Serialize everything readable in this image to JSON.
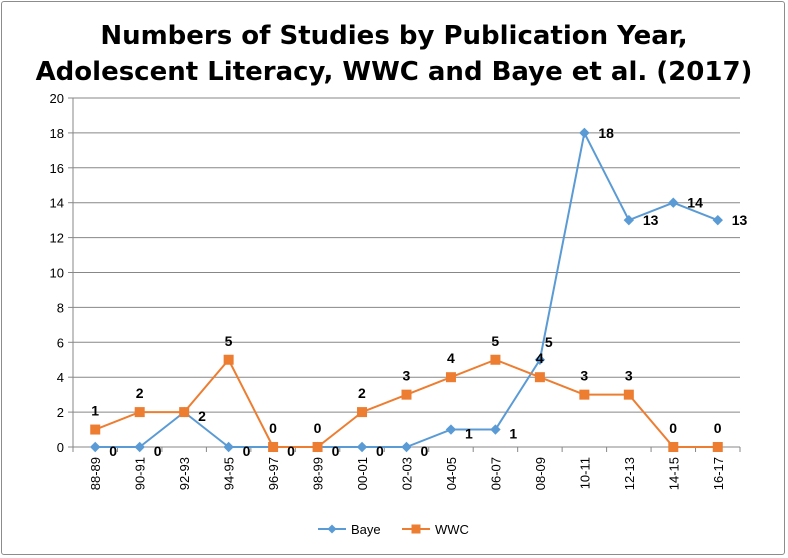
{
  "chart_data": {
    "type": "line",
    "title_line1": "Numbers of Studies by Publication Year,",
    "title_line2": "Adolescent Literacy, WWC and Baye et al. (2017)",
    "xlabel": "",
    "ylabel": "",
    "categories": [
      "88-89",
      "90-91",
      "92-93",
      "94-95",
      "96-97",
      "98-99",
      "00-01",
      "02-03",
      "04-05",
      "06-07",
      "08-09",
      "10-11",
      "12-13",
      "14-15",
      "16-17"
    ],
    "ylim": [
      0,
      20
    ],
    "yticks": [
      0,
      2,
      4,
      6,
      8,
      10,
      12,
      14,
      16,
      18,
      20
    ],
    "grid": true,
    "legend_position": "bottom",
    "series": [
      {
        "name": "Baye",
        "color": "#5b9bd5",
        "marker": "diamond",
        "values": [
          0,
          0,
          2,
          0,
          0,
          0,
          0,
          0,
          1,
          1,
          5,
          18,
          13,
          14,
          13
        ],
        "labels": [
          "0",
          "0",
          "2",
          "0",
          "0",
          "0",
          "0",
          "0",
          "1",
          "1",
          "5",
          "18",
          "13",
          "14",
          "13"
        ]
      },
      {
        "name": "WWC",
        "color": "#ed7d31",
        "marker": "square",
        "values": [
          1,
          2,
          2,
          5,
          0,
          0,
          2,
          3,
          4,
          5,
          4,
          3,
          3,
          0,
          0
        ],
        "labels": [
          "1",
          "2",
          "",
          "5",
          "0",
          "0",
          "2",
          "3",
          "4",
          "5",
          "4",
          "3",
          "3",
          "0",
          "0"
        ]
      }
    ]
  }
}
